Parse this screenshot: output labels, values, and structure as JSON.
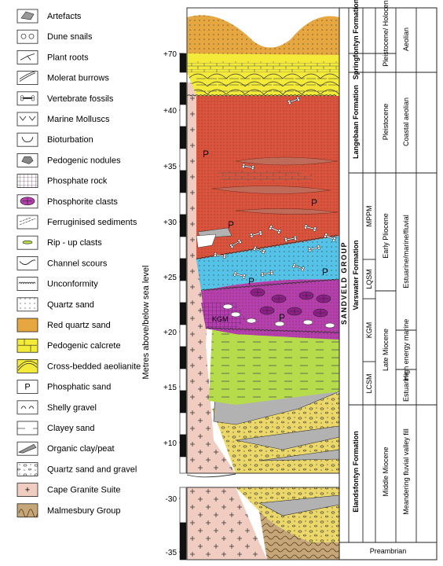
{
  "legend": [
    {
      "label": "Artefacts",
      "icon": "artefact-icon"
    },
    {
      "label": "Dune snails",
      "icon": "snail-icon"
    },
    {
      "label": "Plant roots",
      "icon": "root-icon"
    },
    {
      "label": "Molerat burrows",
      "icon": "burrow-icon"
    },
    {
      "label": "Vertebrate fossils",
      "icon": "bone-icon"
    },
    {
      "label": "Marine Molluscs",
      "icon": "mollusc-icon"
    },
    {
      "label": "Bioturbation",
      "icon": "bioturbation-icon"
    },
    {
      "label": "Pedogenic nodules",
      "icon": "nodule-icon"
    },
    {
      "label": "Phosphate rock",
      "icon": "phosphate-rock-icon"
    },
    {
      "label": "Phosphorite clasts",
      "icon": "phosphorite-icon"
    },
    {
      "label": "Ferruginised sediments",
      "icon": "ferruginised-icon"
    },
    {
      "label": "Rip - up clasts",
      "icon": "ripup-icon"
    },
    {
      "label": "Channel scours",
      "icon": "scour-icon"
    },
    {
      "label": "Unconformity",
      "icon": "unconformity-icon"
    },
    {
      "label": "Quartz sand",
      "icon": "quartz-sand-icon"
    },
    {
      "label": "Red quartz sand",
      "icon": "red-sand-icon"
    },
    {
      "label": "Pedogenic calcrete",
      "icon": "calcrete-icon"
    },
    {
      "label": "Cross-bedded aeolianite",
      "icon": "aeolianite-icon"
    },
    {
      "label": "Phosphatic sand",
      "icon": "phosphatic-sand-icon"
    },
    {
      "label": "Shelly gravel",
      "icon": "shelly-gravel-icon"
    },
    {
      "label": "Clayey sand",
      "icon": "clayey-sand-icon"
    },
    {
      "label": "Organic clay/peat",
      "icon": "peat-icon"
    },
    {
      "label": "Quartz sand and gravel",
      "icon": "sand-gravel-icon"
    },
    {
      "label": "Cape Granite Suite",
      "icon": "granite-icon"
    },
    {
      "label": "Malmesbury Group",
      "icon": "malmesbury-icon"
    }
  ],
  "axis": {
    "title": "Metres above/below sea level",
    "ticks_upper": [
      "+70",
      "+40",
      "+35",
      "+30",
      "+25",
      "+20",
      "+15",
      "+10"
    ],
    "ticks_lower": [
      "-30",
      "-35"
    ]
  },
  "columns": {
    "group": "SANDVELD GROUP",
    "formations": {
      "springfontyn": "Springfontyn Formation",
      "langebaan": "Langebaan Formation",
      "varswater": "Varswater Formation",
      "elandsfontyn": "Elandsfontyn Formation"
    },
    "members": {
      "mppm": "MPPM",
      "lqsm": "LQSM",
      "kgm": "KGM",
      "lcsm": "LCSM"
    },
    "ages": {
      "pleistocene_holocene": "Pleistocene/ Holocene",
      "pleistocene": "Pleistocene",
      "early_pliocene": "Early Pliocene",
      "late_miocene": "Late Miocene",
      "middle_miocene": "Middle Miocene"
    },
    "environments": {
      "aeolian": "Aeolian",
      "coastal_aeolian": "Coastal aeolian",
      "estuarine_marine_fluvial": "Estuarine/marine/fluvial",
      "high_energy_marine": "High energy marine",
      "estuarine": "Estuarine",
      "meandering": "Meandering fluvial valley fill"
    },
    "basement": "Preambrian"
  },
  "section_labels": {
    "phosphatic_p": "P",
    "kgm": "KGM"
  },
  "colors": {
    "red_sand": "#d9533d",
    "orange_sand": "#e6a640",
    "yellow_calcrete": "#f3ea3a",
    "blue_sand": "#55c2e8",
    "magenta": "#b43fae",
    "green": "#b6dc4c",
    "yellow_gravel": "#ecd86a",
    "grey": "#b2b2b2",
    "pink_granite": "#f1ccc0",
    "tan_malmesbury": "#c4a678"
  }
}
